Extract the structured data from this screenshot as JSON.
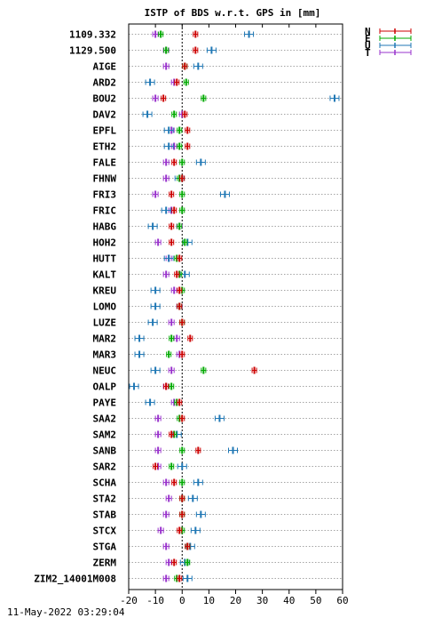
{
  "chart_data": {
    "type": "scatter",
    "title": "ISTP of BDS w.r.t. GPS in [mm]",
    "xlabel": "",
    "ylabel": "",
    "xlim": [
      -20,
      60
    ],
    "xticks": [
      -20,
      -10,
      0,
      10,
      20,
      30,
      40,
      50,
      60
    ],
    "grid": true,
    "legend_position": "top-right",
    "series": [
      {
        "name": "N",
        "color": "#cc0000"
      },
      {
        "name": "E",
        "color": "#00aa00"
      },
      {
        "name": "U",
        "color": "#1f77b4"
      },
      {
        "name": "T",
        "color": "#9933cc"
      }
    ],
    "categories": [
      "1109.332",
      "1129.500",
      "AIGE",
      "ARD2",
      "BOU2",
      "DAV2",
      "EPFL",
      "ETH2",
      "FALE",
      "FHNW",
      "FRI3",
      "FRIC",
      "HABG",
      "HOH2",
      "HUTT",
      "KALT",
      "KREU",
      "LOMO",
      "LUZE",
      "MAR2",
      "MAR3",
      "NEUC",
      "OALP",
      "PAYE",
      "SAA2",
      "SAM2",
      "SANB",
      "SAR2",
      "SCHA",
      "STA2",
      "STAB",
      "STCX",
      "STGA",
      "ZERM",
      "ZIM2_14001M008"
    ],
    "points": [
      {
        "N": 5,
        "E": -8,
        "U": 25,
        "T": -10
      },
      {
        "N": 5,
        "E": -6,
        "U": 11,
        "T": -6
      },
      {
        "N": 1,
        "E": 1,
        "U": 6,
        "T": -6
      },
      {
        "N": -2,
        "E": 1.5,
        "U": -12,
        "T": -3
      },
      {
        "N": -7,
        "E": 8,
        "U": 57,
        "T": -10
      },
      {
        "N": 1,
        "E": -3,
        "U": -13,
        "T": 0
      },
      {
        "N": 2,
        "E": -1,
        "U": -5,
        "T": -4
      },
      {
        "N": 2,
        "E": -1,
        "U": -5,
        "T": -3
      },
      {
        "N": -3,
        "E": 0,
        "U": 7,
        "T": -6
      },
      {
        "N": 0,
        "E": -1,
        "U": -1,
        "T": -6
      },
      {
        "N": -4,
        "E": 0,
        "U": 16,
        "T": -10
      },
      {
        "N": -3,
        "E": 0,
        "U": -6,
        "T": -4
      },
      {
        "N": -4,
        "E": -1,
        "U": -11,
        "T": -1
      },
      {
        "N": -4,
        "E": 1,
        "U": 2,
        "T": -9
      },
      {
        "N": -1,
        "E": -2,
        "U": -5,
        "T": -5
      },
      {
        "N": -2,
        "E": -1,
        "U": 1,
        "T": -6
      },
      {
        "N": -1,
        "E": 0,
        "U": -10,
        "T": -3
      },
      {
        "N": -1,
        "E": -1,
        "U": -10,
        "T": -1
      },
      {
        "N": 0,
        "E": 0,
        "U": -11,
        "T": -4
      },
      {
        "N": 3,
        "E": -4,
        "U": -16,
        "T": -2
      },
      {
        "N": 0,
        "E": -5,
        "U": -16,
        "T": -1
      },
      {
        "N": 27,
        "E": 8,
        "U": -10,
        "T": -4
      },
      {
        "N": -6,
        "E": -4,
        "U": -18,
        "T": -6
      },
      {
        "N": -1,
        "E": -2,
        "U": -12,
        "T": -3
      },
      {
        "N": 0,
        "E": -1,
        "U": 14,
        "T": -9
      },
      {
        "N": -4,
        "E": -3,
        "U": -2,
        "T": -9
      },
      {
        "N": 6,
        "E": 0,
        "U": 19,
        "T": -9
      },
      {
        "N": -10,
        "E": -4,
        "U": 0,
        "T": -9
      },
      {
        "N": -3,
        "E": 0,
        "U": 6,
        "T": -6
      },
      {
        "N": 0,
        "E": 0,
        "U": 4,
        "T": -5
      },
      {
        "N": 0,
        "E": 0,
        "U": 7,
        "T": -6
      },
      {
        "N": -1,
        "E": 0,
        "U": 5,
        "T": -8
      },
      {
        "N": 2,
        "E": 2,
        "U": 3,
        "T": -6
      },
      {
        "N": -3,
        "E": 2,
        "U": 1,
        "T": -5
      },
      {
        "N": -1,
        "E": -2,
        "U": 2,
        "T": -6
      }
    ]
  },
  "footer": {
    "timestamp": "11-May-2022 03:29:04"
  }
}
